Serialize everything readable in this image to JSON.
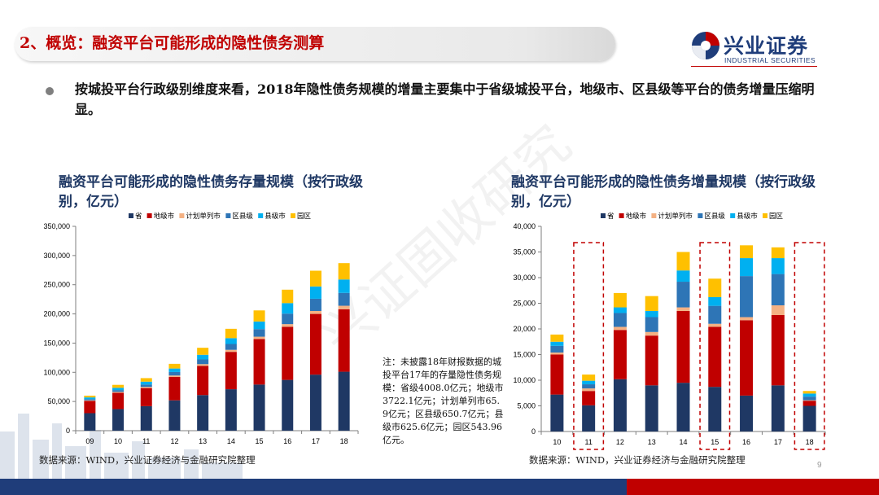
{
  "header": {
    "title": "2、概览：融资平台可能形成的隐性债务测算",
    "logo_cn": "兴业证券",
    "logo_en": "INDUSTRIAL SECURITIES"
  },
  "bullet": "按城投平台行政级别维度来看，2018年隐性债务规模的增量主要集中于省级城投平台，地级市、区县级等平台的债务增量压缩明显。",
  "colors": {
    "省": "#1f3864",
    "地级市": "#c00000",
    "计划单列市": "#f4b183",
    "区县级": "#2e75b6",
    "县级市": "#00b0f0",
    "园区": "#ffc000"
  },
  "chart_data": [
    {
      "type": "bar",
      "stacked": true,
      "title": "融资平台可能形成的隐性债务存量规模（按行政级别，亿元）",
      "categories": [
        "09",
        "10",
        "11",
        "12",
        "13",
        "14",
        "15",
        "16",
        "17",
        "18"
      ],
      "ylim": [
        0,
        350000
      ],
      "yticks": [
        "0",
        "50,000",
        "100,000",
        "150,000",
        "200,000",
        "250,000",
        "300,000",
        "350,000"
      ],
      "legend": "top",
      "series": [
        {
          "name": "省",
          "values": [
            30000,
            37000,
            42000,
            52000,
            61000,
            71000,
            79000,
            87000,
            96000,
            101000
          ]
        },
        {
          "name": "地级市",
          "values": [
            21000,
            28000,
            31000,
            40000,
            50000,
            64000,
            78000,
            91000,
            104000,
            107000
          ]
        },
        {
          "name": "计划单列市",
          "values": [
            1000,
            1500,
            2000,
            2500,
            3000,
            3500,
            4000,
            4500,
            5000,
            6000
          ]
        },
        {
          "name": "区县级",
          "values": [
            2000,
            3000,
            4000,
            6000,
            8000,
            10000,
            13000,
            18000,
            21000,
            22000
          ]
        },
        {
          "name": "县级市",
          "values": [
            3000,
            4000,
            5000,
            6000,
            8000,
            10000,
            13000,
            18000,
            21000,
            23000
          ]
        },
        {
          "name": "园区",
          "values": [
            3000,
            5000,
            6000,
            8000,
            12000,
            16000,
            19000,
            23000,
            27000,
            28000
          ]
        }
      ]
    },
    {
      "type": "bar",
      "stacked": true,
      "title": "融资平台可能形成的隐性债务增量规模（按行政级别，亿元）",
      "categories": [
        "10",
        "11",
        "12",
        "13",
        "14",
        "15",
        "16",
        "17",
        "18"
      ],
      "ylim": [
        0,
        40000
      ],
      "yticks": [
        "0",
        "5,000",
        "10,000",
        "15,000",
        "20,000",
        "25,000",
        "30,000",
        "35,000",
        "40,000"
      ],
      "legend": "top",
      "highlighted": [
        "11",
        "15",
        "18"
      ],
      "series": [
        {
          "name": "省",
          "values": [
            7200,
            5100,
            10200,
            9000,
            9500,
            8700,
            7000,
            9000,
            5000
          ]
        },
        {
          "name": "地级市",
          "values": [
            7800,
            2800,
            9600,
            9700,
            14000,
            11700,
            14700,
            13700,
            1000
          ]
        },
        {
          "name": "计划单列市",
          "values": [
            400,
            500,
            600,
            700,
            700,
            600,
            600,
            1900,
            100
          ]
        },
        {
          "name": "区县级",
          "values": [
            1300,
            800,
            2700,
            2900,
            5000,
            3500,
            8000,
            6100,
            700
          ]
        },
        {
          "name": "县级市",
          "values": [
            800,
            700,
            1100,
            1200,
            2200,
            1700,
            3500,
            3100,
            600
          ]
        },
        {
          "name": "园区",
          "values": [
            1400,
            1200,
            2800,
            2900,
            3600,
            3600,
            2500,
            2100,
            500
          ]
        }
      ]
    }
  ],
  "charts": {
    "left_title": "融资平台可能形成的隐性债务存量规模（按行政级别，亿元）",
    "right_title": "融资平台可能形成的隐性债务增量规模（按行政级别，亿元）",
    "source_left": "数据来源：WIND，兴业证券经济与金融研究院整理",
    "source_right": "数据来源：WIND，兴业证券经济与金融研究院整理",
    "note": "注：未披露18年财报数据的城投平台17年的存量隐性债务规模：省级4008.0亿元；地级市3722.1亿元；计划单列市65.9亿元；区县级650.7亿元；县级市625.6亿元；园区543.96亿元。"
  },
  "watermark": "兴证固收研究",
  "page_number": "9"
}
